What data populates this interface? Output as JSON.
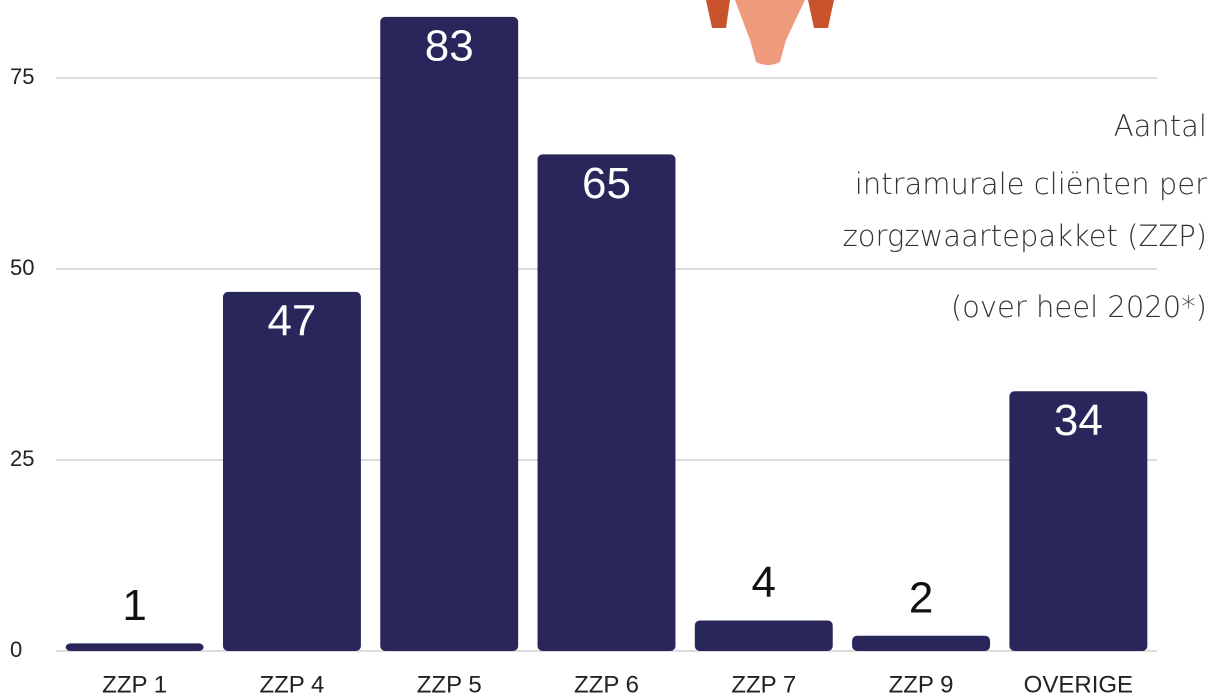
{
  "chart_data": {
    "type": "bar",
    "title": [
      "Aantal",
      "intramurale cliënten per",
      "zorgzwaartepakket (ZZP)",
      "(over heel 2020*)"
    ],
    "categories": [
      "ZZP 1",
      "ZZP 4",
      "ZZP 5",
      "ZZP 6",
      "ZZP 7",
      "ZZP 9",
      "OVERIGE"
    ],
    "values": [
      1,
      47,
      83,
      65,
      4,
      2,
      34
    ],
    "color": "#29265b",
    "ylim": [
      0,
      85
    ],
    "yticks": [
      0,
      25,
      50,
      75
    ],
    "grid": true
  }
}
